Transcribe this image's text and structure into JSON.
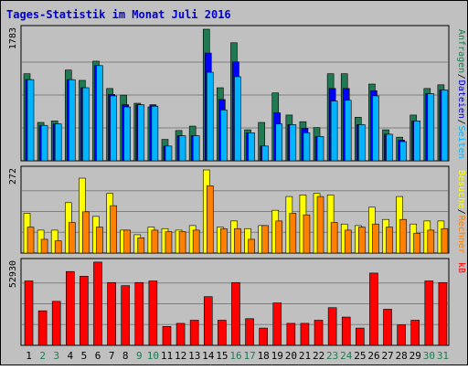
{
  "title": "Tages-Statistik im Monat Juli 2016",
  "colors": {
    "background": "#c0c0c0",
    "title": "#0000cc",
    "hits": "#1f7a52",
    "files": "#0000ff",
    "pages": "#00b4ff",
    "visits": "#ffff00",
    "sites": "#ff8000",
    "kbytes": "#ff0000",
    "weekend_label": "#1f7a52",
    "weekday_label": "#000000",
    "grid": "#808080"
  },
  "chart_data": [
    {
      "type": "bar",
      "panel": "top",
      "y_max_label": "1783",
      "ylim": [
        0,
        1783
      ],
      "grid": true,
      "legend": "right side, vertical",
      "legend_entries": [
        "Anfragen",
        "Dateien",
        "Seiten"
      ],
      "categories": [
        "1",
        "2",
        "3",
        "4",
        "5",
        "6",
        "7",
        "8",
        "9",
        "10",
        "11",
        "12",
        "13",
        "14",
        "15",
        "16",
        "17",
        "18",
        "19",
        "20",
        "21",
        "22",
        "23",
        "24",
        "25",
        "26",
        "27",
        "28",
        "29",
        "30",
        "31"
      ],
      "weekend_days": [
        "2",
        "3",
        "9",
        "10",
        "16",
        "17",
        "23",
        "24",
        "30",
        "31"
      ],
      "series": [
        {
          "name": "Anfragen",
          "values": [
            1180,
            520,
            540,
            1230,
            1090,
            1350,
            980,
            890,
            780,
            730,
            290,
            410,
            470,
            1783,
            990,
            1600,
            420,
            520,
            920,
            620,
            530,
            450,
            1180,
            1180,
            590,
            1040,
            420,
            320,
            620,
            980,
            1030
          ]
        },
        {
          "name": "Dateien",
          "values": [
            1100,
            480,
            500,
            1100,
            990,
            1290,
            900,
            760,
            760,
            760,
            200,
            340,
            340,
            1460,
            830,
            1340,
            380,
            200,
            650,
            490,
            440,
            330,
            980,
            980,
            490,
            950,
            360,
            280,
            540,
            910,
            960
          ]
        },
        {
          "name": "Seiten",
          "values": [
            1100,
            480,
            500,
            1100,
            990,
            1290,
            880,
            730,
            760,
            740,
            200,
            340,
            340,
            1200,
            690,
            1140,
            380,
            200,
            500,
            490,
            380,
            330,
            810,
            820,
            490,
            880,
            360,
            260,
            540,
            910,
            960
          ]
        }
      ]
    },
    {
      "type": "bar",
      "panel": "middle",
      "y_max_label": "272",
      "ylim": [
        0,
        272
      ],
      "grid": true,
      "legend": "right side, vertical",
      "legend_entries": [
        "Besuche",
        "Rechner"
      ],
      "categories": [
        "1",
        "2",
        "3",
        "4",
        "5",
        "6",
        "7",
        "8",
        "9",
        "10",
        "11",
        "12",
        "13",
        "14",
        "15",
        "16",
        "17",
        "18",
        "19",
        "20",
        "21",
        "22",
        "23",
        "24",
        "25",
        "26",
        "27",
        "28",
        "29",
        "30",
        "31"
      ],
      "series": [
        {
          "name": "Besuche",
          "values": [
            130,
            75,
            75,
            165,
            245,
            120,
            195,
            75,
            60,
            85,
            80,
            75,
            90,
            272,
            85,
            105,
            80,
            90,
            140,
            185,
            190,
            195,
            190,
            95,
            90,
            150,
            110,
            185,
            95,
            105,
            105
          ]
        },
        {
          "name": "Rechner",
          "values": [
            85,
            45,
            40,
            100,
            135,
            85,
            155,
            75,
            50,
            75,
            70,
            70,
            75,
            220,
            80,
            80,
            45,
            90,
            105,
            130,
            125,
            185,
            100,
            75,
            85,
            95,
            85,
            110,
            65,
            75,
            80
          ]
        }
      ]
    },
    {
      "type": "bar",
      "panel": "bottom",
      "y_max_label": "52930",
      "ylim": [
        0,
        52930
      ],
      "grid": true,
      "legend": "right side, vertical",
      "legend_entries": [
        "kB"
      ],
      "categories": [
        "1",
        "2",
        "3",
        "4",
        "5",
        "6",
        "7",
        "8",
        "9",
        "10",
        "11",
        "12",
        "13",
        "14",
        "15",
        "16",
        "17",
        "18",
        "19",
        "20",
        "21",
        "22",
        "23",
        "24",
        "25",
        "26",
        "27",
        "28",
        "29",
        "30",
        "31"
      ],
      "series": [
        {
          "name": "kB",
          "values": [
            41000,
            22000,
            28000,
            47000,
            44000,
            53000,
            40000,
            38000,
            40000,
            41000,
            12000,
            14000,
            16000,
            31000,
            16000,
            40000,
            17000,
            11000,
            27000,
            14000,
            14000,
            16000,
            24000,
            18000,
            11000,
            46000,
            23000,
            13000,
            16000,
            41000,
            40000
          ]
        }
      ]
    }
  ]
}
